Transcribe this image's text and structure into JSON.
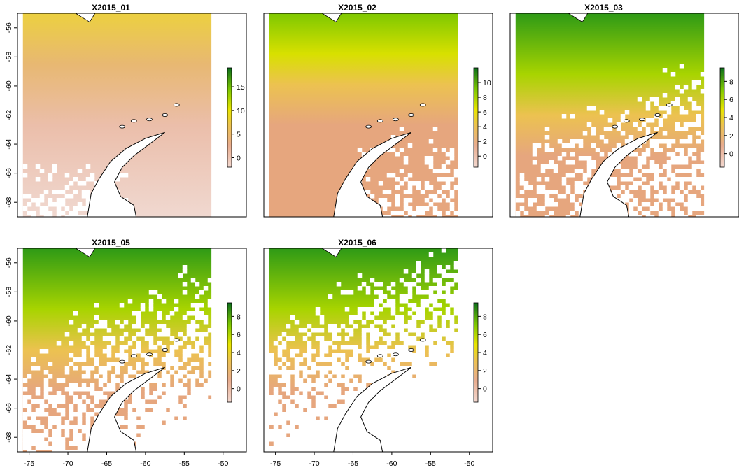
{
  "chart_data": [
    {
      "type": "heatmap",
      "title": "X2015_01",
      "y_ticks": [
        "-56",
        "-58",
        "-60",
        "-62",
        "-64",
        "-66",
        "-68"
      ],
      "x_ticks": [],
      "legend_ticks": [
        0,
        5,
        10,
        15
      ],
      "legend_range": [
        -2,
        19
      ],
      "color_ramp": [
        "#f2d8d0",
        "#e8ac8e",
        "#ecc250",
        "#e8e400",
        "#7ec800",
        "#0c6e1c"
      ]
    },
    {
      "type": "heatmap",
      "title": "X2015_02",
      "y_ticks": [],
      "x_ticks": [],
      "legend_ticks": [
        0,
        2,
        4,
        6,
        8,
        10
      ],
      "legend_range": [
        -1.5,
        12
      ],
      "color_ramp": [
        "#f2d8d0",
        "#e8ac8e",
        "#ecc250",
        "#e8e400",
        "#7ec800",
        "#0c6e1c"
      ]
    },
    {
      "type": "heatmap",
      "title": "X2015_03",
      "y_ticks": [],
      "x_ticks": [],
      "legend_ticks": [
        0,
        2,
        4,
        6,
        8
      ],
      "legend_range": [
        -1.5,
        9.5
      ],
      "color_ramp": [
        "#f2d8d0",
        "#e8ac8e",
        "#ecc250",
        "#e8e400",
        "#7ec800",
        "#0c6e1c"
      ]
    },
    {
      "type": "heatmap",
      "title": "X2015_05",
      "y_ticks": [
        "-56",
        "-58",
        "-60",
        "-62",
        "-64",
        "-66",
        "-68"
      ],
      "x_ticks": [
        "-75",
        "-70",
        "-65",
        "-60",
        "-55",
        "-50"
      ],
      "legend_ticks": [
        0,
        2,
        4,
        6,
        8
      ],
      "legend_range": [
        -1.5,
        9.5
      ],
      "color_ramp": [
        "#f2d8d0",
        "#e8ac8e",
        "#ecc250",
        "#e8e400",
        "#7ec800",
        "#0c6e1c"
      ]
    },
    {
      "type": "heatmap",
      "title": "X2015_06",
      "y_ticks": [],
      "x_ticks": [
        "-75",
        "-70",
        "-65",
        "-60",
        "-55",
        "-50"
      ],
      "legend_ticks": [
        0,
        2,
        4,
        6,
        8
      ],
      "legend_range": [
        -1.5,
        9.5
      ],
      "color_ramp": [
        "#f2d8d0",
        "#e8ac8e",
        "#ecc250",
        "#e8e400",
        "#7ec800",
        "#0c6e1c"
      ]
    }
  ]
}
